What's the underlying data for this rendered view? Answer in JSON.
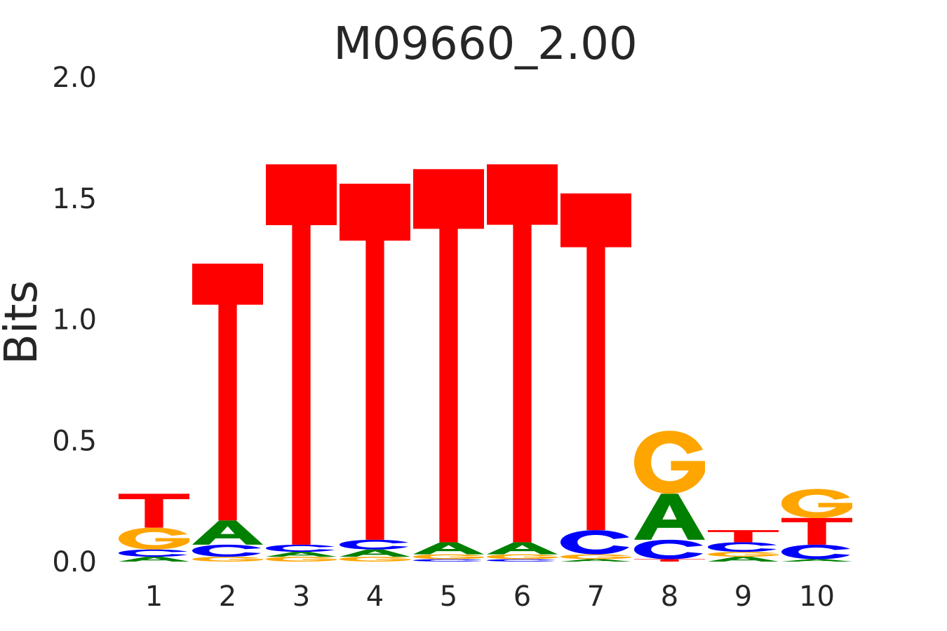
{
  "chart_data": {
    "type": "sequence-logo",
    "title": "M09660_2.00",
    "ylabel": "Bits",
    "xlabel": "",
    "ylim": [
      0,
      2
    ],
    "yticks": [
      "0.0",
      "0.5",
      "1.0",
      "1.5",
      "2.0"
    ],
    "positions": [
      "1",
      "2",
      "3",
      "4",
      "5",
      "6",
      "7",
      "8",
      "9",
      "10"
    ],
    "colors": {
      "A": "#008000",
      "C": "#0000ff",
      "G": "#ffa500",
      "T": "#ff0000"
    },
    "grid": false,
    "columns": [
      [
        {
          "base": "A",
          "bits": 0.02
        },
        {
          "base": "C",
          "bits": 0.03
        },
        {
          "base": "G",
          "bits": 0.09
        },
        {
          "base": "T",
          "bits": 0.14
        }
      ],
      [
        {
          "base": "G",
          "bits": 0.02
        },
        {
          "base": "C",
          "bits": 0.05
        },
        {
          "base": "A",
          "bits": 0.1
        },
        {
          "base": "T",
          "bits": 1.06
        }
      ],
      [
        {
          "base": "G",
          "bits": 0.02
        },
        {
          "base": "A",
          "bits": 0.02
        },
        {
          "base": "C",
          "bits": 0.03
        },
        {
          "base": "T",
          "bits": 1.57
        }
      ],
      [
        {
          "base": "G",
          "bits": 0.02
        },
        {
          "base": "A",
          "bits": 0.03
        },
        {
          "base": "C",
          "bits": 0.04
        },
        {
          "base": "T",
          "bits": 1.47
        }
      ],
      [
        {
          "base": "C",
          "bits": 0.01
        },
        {
          "base": "G",
          "bits": 0.02
        },
        {
          "base": "A",
          "bits": 0.05
        },
        {
          "base": "T",
          "bits": 1.54
        }
      ],
      [
        {
          "base": "C",
          "bits": 0.01
        },
        {
          "base": "G",
          "bits": 0.02
        },
        {
          "base": "A",
          "bits": 0.05
        },
        {
          "base": "T",
          "bits": 1.56
        }
      ],
      [
        {
          "base": "A",
          "bits": 0.01
        },
        {
          "base": "G",
          "bits": 0.02
        },
        {
          "base": "C",
          "bits": 0.1
        },
        {
          "base": "T",
          "bits": 1.39
        }
      ],
      [
        {
          "base": "T",
          "bits": 0.01
        },
        {
          "base": "C",
          "bits": 0.08
        },
        {
          "base": "A",
          "bits": 0.19
        },
        {
          "base": "G",
          "bits": 0.26
        }
      ],
      [
        {
          "base": "A",
          "bits": 0.02
        },
        {
          "base": "G",
          "bits": 0.02
        },
        {
          "base": "C",
          "bits": 0.04
        },
        {
          "base": "T",
          "bits": 0.05
        }
      ],
      [
        {
          "base": "A",
          "bits": 0.01
        },
        {
          "base": "C",
          "bits": 0.06
        },
        {
          "base": "T",
          "bits": 0.11
        },
        {
          "base": "G",
          "bits": 0.12
        }
      ]
    ]
  }
}
